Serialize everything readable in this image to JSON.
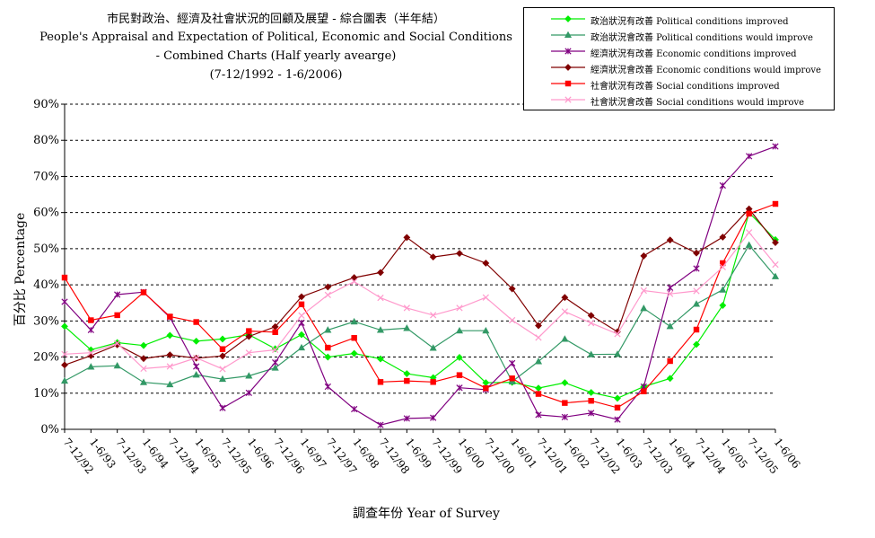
{
  "chart_data": {
    "type": "line",
    "title": [
      "市民對政治、經濟及社會狀況的回顧及展望 - 綜合圖表（半年結）",
      "People's Appraisal and Expectation of Political, Economic and Social Conditions",
      "- Combined Charts  (Half yearly avearge)",
      "(7-12/1992 - 1-6/2006)"
    ],
    "xlabel": "調查年份 Year of Survey",
    "ylabel": "百分比 Percentage",
    "ylim": [
      0,
      90
    ],
    "yticks": [
      "0%",
      "10%",
      "20%",
      "30%",
      "40%",
      "50%",
      "60%",
      "70%",
      "80%",
      "90%"
    ],
    "grid": "horizontal dashed",
    "legend_position": "top-right",
    "categories": [
      "7-12/92",
      "1-6/93",
      "7-12/93",
      "1-6/94",
      "7-12/94",
      "1-6/95",
      "7-12/95",
      "1-6/96",
      "7-12/96",
      "1-6/97",
      "7-12/97",
      "1-6/98",
      "7-12/98",
      "1-6/99",
      "7-12/99",
      "1-6/00",
      "7-12/00",
      "1-6/01",
      "7-12/01",
      "1-6/02",
      "7-12/02",
      "1-6/03",
      "7-12/03",
      "1-6/04",
      "7-12/04",
      "1-6/05",
      "7-12/05",
      "1-6/06"
    ],
    "series": [
      {
        "name": "政治狀況有改善 Political conditions improved",
        "color": "#00ee00",
        "marker": "diamond",
        "values": [
          28.5,
          22,
          24,
          23.2,
          26,
          24.4,
          25,
          26.2,
          22.3,
          26.2,
          20,
          21,
          19.5,
          15.4,
          14.3,
          19.9,
          12.9,
          13,
          11.4,
          12.9,
          10.2,
          8.6,
          11.8,
          14.1,
          23.5,
          34.3,
          60,
          52.5
        ]
      },
      {
        "name": "政治狀況會改善 Political conditions would improve",
        "color": "#339966",
        "marker": "triangle",
        "values": [
          13.4,
          17.3,
          17.6,
          13,
          12.4,
          15.1,
          13.9,
          14.8,
          17,
          22.6,
          27.5,
          29.8,
          27.5,
          28,
          22.5,
          27.3,
          27.3,
          13.2,
          18.8,
          25,
          20.7,
          20.8,
          33.5,
          28.5,
          34.7,
          38.6,
          51,
          42.3
        ]
      },
      {
        "name": "經濟狀況有改善 Economic conditions improved",
        "color": "#800080",
        "marker": "star",
        "values": [
          35.3,
          27.5,
          37.3,
          38,
          31,
          17.4,
          5.9,
          10.1,
          18.5,
          29.5,
          11.8,
          5.6,
          1.2,
          3,
          3.2,
          11.5,
          11,
          18.3,
          4,
          3.4,
          4.5,
          2.7,
          11.8,
          39.2,
          44.5,
          67.5,
          75.6,
          78.3
        ]
      },
      {
        "name": "經濟狀況會改善 Economic conditions would improve",
        "color": "#800000",
        "marker": "diamond",
        "values": [
          17.8,
          20.4,
          23.4,
          19.6,
          20.6,
          19.7,
          20.3,
          25.7,
          28.4,
          36.7,
          39.4,
          42,
          43.4,
          53.1,
          47.7,
          48.7,
          46,
          38.9,
          28.7,
          36.5,
          31.5,
          27,
          48,
          52.4,
          48.8,
          53.2,
          61,
          51.7
        ]
      },
      {
        "name": "社會狀況有改善 Social conditions improved",
        "color": "#ff0000",
        "marker": "square",
        "values": [
          42,
          30.2,
          31.6,
          37.9,
          31.2,
          29.7,
          22.2,
          27.2,
          26.9,
          34.6,
          22.6,
          25.3,
          13.1,
          13.4,
          13.1,
          15,
          11.4,
          14.1,
          9.8,
          7.3,
          7.9,
          6,
          10.5,
          18.9,
          27.6,
          46,
          59.7,
          62.4
        ]
      },
      {
        "name": "社會狀況會改善 Social conditions would improve",
        "color": "#ff99cc",
        "marker": "x",
        "values": [
          20.8,
          21.2,
          23.8,
          16.8,
          17.4,
          19.8,
          16.7,
          21.2,
          22,
          31.5,
          37.2,
          40.9,
          36.4,
          33.6,
          31.6,
          33.6,
          36.5,
          30.2,
          25.4,
          32.6,
          29.4,
          26.4,
          38.4,
          37.5,
          38.3,
          44.9,
          54.5,
          45.6
        ]
      }
    ]
  }
}
